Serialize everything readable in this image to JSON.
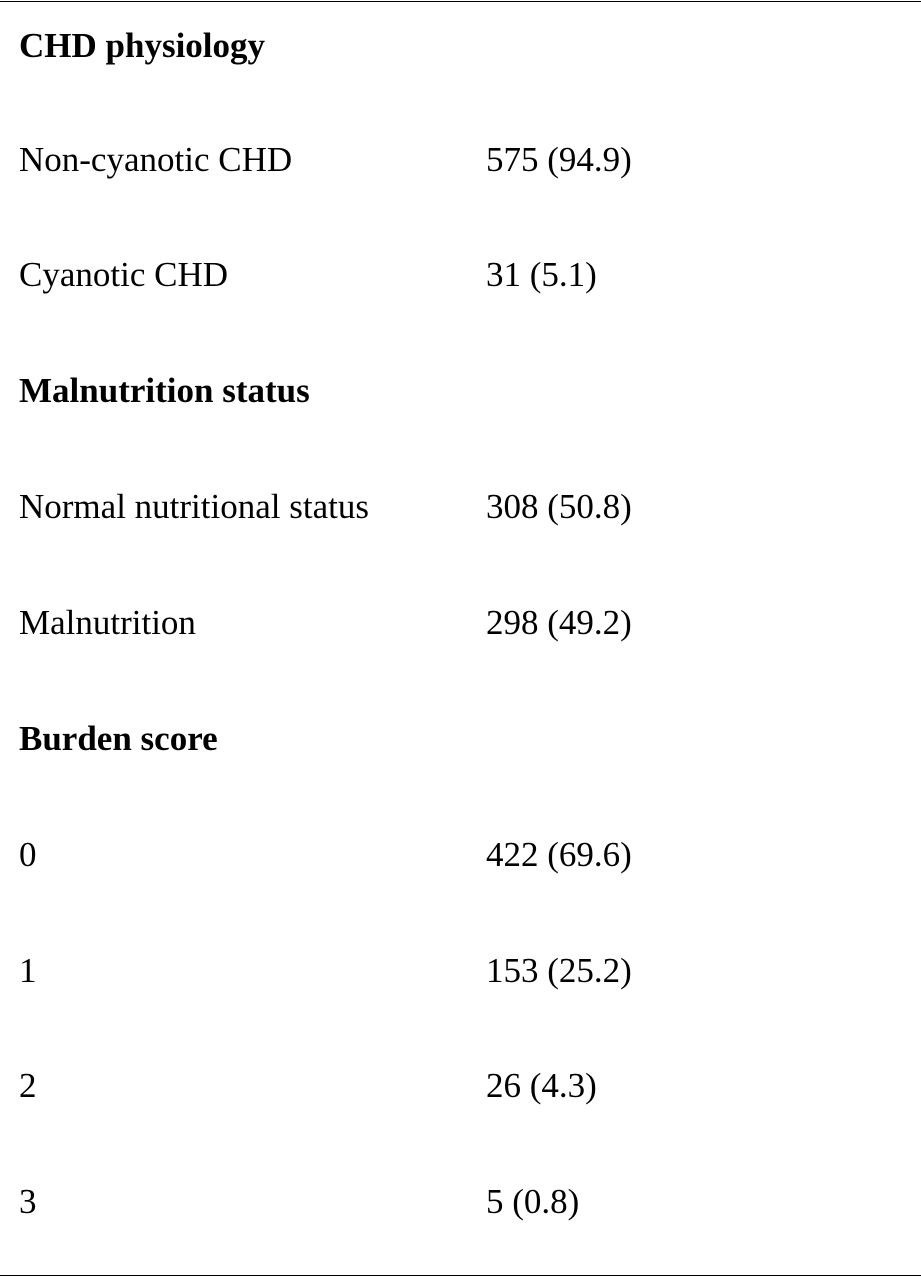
{
  "table": {
    "sections": [
      {
        "heading": "CHD physiology",
        "rows": [
          {
            "label": "Non-cyanotic CHD",
            "value": "575 (94.9)"
          },
          {
            "label": "Cyanotic CHD",
            "value": "31 (5.1)"
          }
        ]
      },
      {
        "heading": "Malnutrition status",
        "rows": [
          {
            "label": "Normal nutritional status",
            "value": "308 (50.8)"
          },
          {
            "label": "Malnutrition",
            "value": "298 (49.2)"
          }
        ]
      },
      {
        "heading": "Burden score",
        "rows": [
          {
            "label": "0",
            "value": "422 (69.6)"
          },
          {
            "label": "1",
            "value": "153 (25.2)"
          },
          {
            "label": "2",
            "value": "26 (4.3)"
          },
          {
            "label": "3",
            "value": "5 (0.8)"
          }
        ]
      }
    ]
  }
}
